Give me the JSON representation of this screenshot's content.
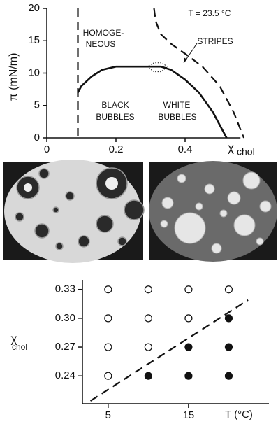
{
  "chart_data": [
    {
      "type": "line",
      "annotations": [
        "T = 23.5 °C",
        "HOMOGE-",
        "NEOUS",
        "STRIPES",
        "BLACK",
        "BUBBLES",
        "WHITE",
        "BUBBLES"
      ],
      "xlabel": "χ",
      "xlabel_subscript": "chol",
      "ylabel": "π (mN/m)",
      "xlim": [
        0,
        0.6
      ],
      "xticks": [
        0,
        0.2,
        0.4
      ],
      "ylim": [
        0,
        20
      ],
      "yticks": [
        0,
        5,
        10,
        15,
        20
      ],
      "series": [
        {
          "style": "dashed-line",
          "color": "#111111",
          "x": [
            0.09,
            0.09,
            0.09
          ],
          "values": [
            20,
            10,
            0
          ]
        },
        {
          "style": "solid-line",
          "color": "#111111",
          "x": [
            0.09,
            0.1,
            0.13,
            0.16,
            0.2,
            0.25,
            0.3,
            0.33,
            0.36,
            0.4,
            0.44,
            0.48,
            0.5,
            0.52
          ],
          "values": [
            7,
            8,
            9.5,
            10.5,
            11,
            11,
            11,
            11,
            10.5,
            9,
            7,
            4,
            2,
            0
          ]
        },
        {
          "style": "dashed-line",
          "color": "#111111",
          "x": [
            0.31,
            0.315,
            0.33,
            0.36,
            0.4,
            0.45,
            0.5,
            0.54,
            0.57
          ],
          "values": [
            20,
            18,
            16,
            14.5,
            13,
            11,
            8,
            4,
            0
          ]
        },
        {
          "style": "thin-dashed-line",
          "color": "#111111",
          "x": [
            0.31,
            0.31
          ],
          "values": [
            11,
            0
          ]
        },
        {
          "style": "dotted-line",
          "color": "#111111",
          "x": [
            0.29,
            0.31,
            0.33,
            0.35,
            0.33,
            0.31,
            0.29
          ],
          "values": [
            11,
            10.2,
            10.2,
            11,
            11.6,
            11.6,
            11
          ]
        }
      ]
    },
    {
      "type": "scatter",
      "xlabel": "T (°C)",
      "ylabel": "χ",
      "ylabel_subscript": "chol",
      "xlim": [
        1.8,
        25
      ],
      "xticks": [
        5,
        15
      ],
      "ylim": [
        0.211,
        0.34
      ],
      "yticks": [
        {
          "value": 0.24,
          "label": "0.24"
        },
        {
          "value": 0.27,
          "label": "0.27"
        },
        {
          "value": 0.3,
          "label": "0.30"
        },
        {
          "value": 0.33,
          "label": "0.33"
        }
      ],
      "series": [
        {
          "style": "open-circle",
          "color": "#111111",
          "x": [
            5,
            10,
            15,
            20,
            5,
            10,
            15,
            5,
            10,
            5
          ],
          "values": [
            0.33,
            0.33,
            0.33,
            0.33,
            0.3,
            0.3,
            0.3,
            0.27,
            0.27,
            0.24
          ]
        },
        {
          "style": "filled-circle",
          "color": "#111111",
          "x": [
            20,
            15,
            20,
            10,
            15,
            20
          ],
          "values": [
            0.3,
            0.27,
            0.27,
            0.24,
            0.24,
            0.24
          ]
        },
        {
          "style": "dashed-line",
          "color": "#111111",
          "x": [
            2.8,
            22.4
          ],
          "values": [
            0.214,
            0.319
          ]
        }
      ]
    }
  ]
}
